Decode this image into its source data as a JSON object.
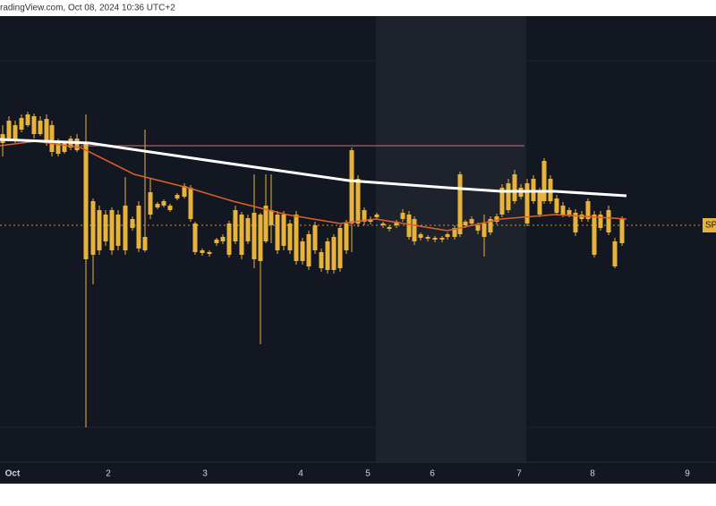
{
  "header": {
    "text": "radingView.com, Oct 08, 2024 10:36 UTC+2"
  },
  "x_axis": {
    "labels": [
      "Oct",
      "2",
      "3",
      "4",
      "5",
      "6",
      "7",
      "8",
      "9"
    ]
  },
  "price_label": "SP"
}
